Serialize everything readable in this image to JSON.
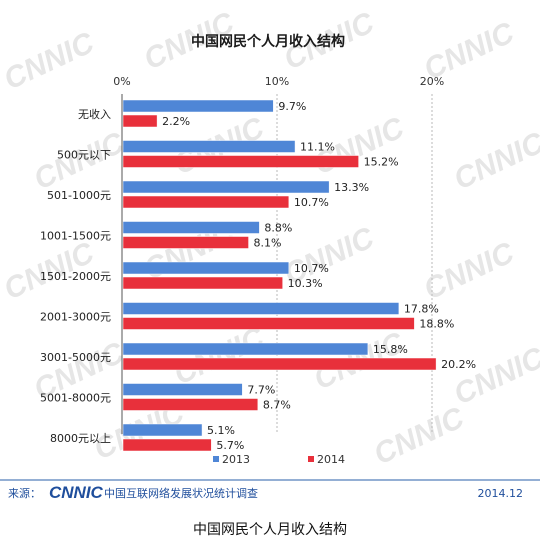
{
  "chart_data": {
    "type": "bar",
    "orientation": "horizontal",
    "title": "中国网民个人月收入结构",
    "categories": [
      "无收入",
      "500元以下",
      "501-1000元",
      "1001-1500元",
      "1501-2000元",
      "2001-3000元",
      "3001-5000元",
      "5001-8000元",
      "8000元以上"
    ],
    "series": [
      {
        "name": "2013",
        "color": "#4f86d6",
        "values": [
          9.7,
          11.1,
          13.3,
          8.8,
          10.7,
          17.8,
          15.8,
          7.7,
          5.1
        ],
        "labels": [
          "9.7%",
          "11.1%",
          "13.3%",
          "8.8%",
          "10.7%",
          "17.8%",
          "15.8%",
          "7.7%",
          "5.1%"
        ]
      },
      {
        "name": "2014",
        "color": "#e8303b",
        "values": [
          2.2,
          15.2,
          10.7,
          8.1,
          10.3,
          18.8,
          20.2,
          8.7,
          5.7
        ],
        "labels": [
          "2.2%",
          "15.2%",
          "10.7%",
          "8.1%",
          "10.3%",
          "18.8%",
          "20.2%",
          "8.7%",
          "5.7%"
        ]
      }
    ],
    "x_ticks": [
      "0%",
      "10%",
      "20%"
    ],
    "x_tick_values": [
      0,
      10,
      20
    ],
    "xlim": [
      0,
      20
    ],
    "grid": true,
    "legend": "bottom"
  },
  "footer": {
    "source_label": "来源：",
    "logo_text": "CNNIC",
    "source_org": "中国互联网络发展状况统计调查",
    "date": "2014.12"
  },
  "watermark": "CNNIC",
  "caption": "中国网民个人月收入结构"
}
